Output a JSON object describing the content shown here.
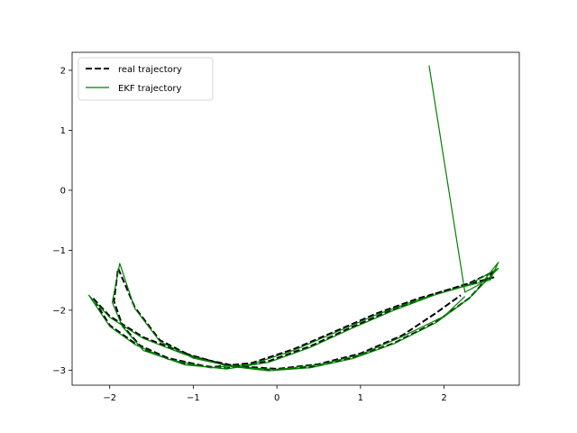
{
  "chart_data": {
    "type": "line",
    "title": "",
    "xlabel": "",
    "ylabel": "",
    "xlim": [
      -2.45,
      2.9
    ],
    "ylim": [
      -3.25,
      2.3
    ],
    "xticks": [
      -2,
      -1,
      0,
      1,
      2
    ],
    "xtick_labels": [
      "−2",
      "−1",
      "0",
      "1",
      "2"
    ],
    "yticks": [
      2,
      1,
      0,
      -1,
      -2,
      -3
    ],
    "ytick_labels": [
      "2",
      "1",
      "0",
      "−1",
      "−2",
      "−3"
    ],
    "grid": false,
    "legend_position": "upper-left",
    "series": [
      {
        "name": "real trajectory",
        "color": "#000000",
        "style": "dashed",
        "x": [
          2.6,
          2.2,
          1.7,
          1.2,
          0.7,
          0.2,
          -0.3,
          -0.8,
          -1.3,
          -1.7,
          -2.0,
          -2.2,
          -2.0,
          -1.6,
          -1.1,
          -0.6,
          -0.1,
          0.4,
          0.9,
          1.4,
          1.9,
          2.3,
          2.6,
          2.3,
          1.9,
          1.4,
          0.9,
          0.4,
          -0.1,
          -0.6,
          -1.1,
          -1.6,
          -1.85,
          -1.95,
          -1.9,
          -1.7,
          -1.4,
          -1.0,
          -0.5,
          0.0,
          0.5,
          1.0,
          1.5,
          1.9,
          2.2
        ],
        "y": [
          -1.45,
          -1.6,
          -1.8,
          -2.05,
          -2.35,
          -2.65,
          -2.88,
          -2.95,
          -2.8,
          -2.55,
          -2.25,
          -1.8,
          -2.1,
          -2.45,
          -2.72,
          -2.92,
          -3.0,
          -2.95,
          -2.8,
          -2.55,
          -2.2,
          -1.8,
          -1.35,
          -1.55,
          -1.72,
          -1.98,
          -2.28,
          -2.6,
          -2.85,
          -2.97,
          -2.9,
          -2.65,
          -2.25,
          -1.85,
          -1.3,
          -1.95,
          -2.5,
          -2.78,
          -2.93,
          -2.98,
          -2.9,
          -2.72,
          -2.42,
          -2.05,
          -1.75
        ]
      },
      {
        "name": "EKF trajectory",
        "color": "#008000",
        "style": "solid",
        "x": [
          1.82,
          2.25,
          2.45,
          2.65,
          2.55,
          2.2,
          1.7,
          1.2,
          0.7,
          0.2,
          -0.3,
          -0.8,
          -1.3,
          -1.7,
          -2.0,
          -2.25,
          -2.0,
          -1.6,
          -1.1,
          -0.6,
          -0.1,
          0.4,
          0.9,
          1.4,
          1.9,
          2.3,
          2.65,
          2.3,
          1.9,
          1.4,
          0.9,
          0.4,
          -0.1,
          -0.6,
          -1.1,
          -1.6,
          -1.85,
          -1.97,
          -1.88,
          -1.7,
          -1.4,
          -1.0,
          -0.5,
          0.0,
          0.5,
          1.0,
          1.5,
          2.0,
          2.25
        ],
        "y": [
          2.08,
          -1.7,
          -1.55,
          -1.2,
          -1.5,
          -1.62,
          -1.82,
          -2.07,
          -2.37,
          -2.67,
          -2.9,
          -2.96,
          -2.82,
          -2.57,
          -2.27,
          -1.75,
          -2.12,
          -2.47,
          -2.74,
          -2.93,
          -3.01,
          -2.96,
          -2.81,
          -2.56,
          -2.21,
          -1.8,
          -1.3,
          -1.57,
          -1.74,
          -2.0,
          -2.3,
          -2.62,
          -2.87,
          -2.98,
          -2.91,
          -2.67,
          -2.27,
          -1.87,
          -1.22,
          -1.97,
          -2.52,
          -2.8,
          -2.95,
          -2.99,
          -2.91,
          -2.74,
          -2.44,
          -2.1,
          -1.77
        ]
      }
    ]
  }
}
